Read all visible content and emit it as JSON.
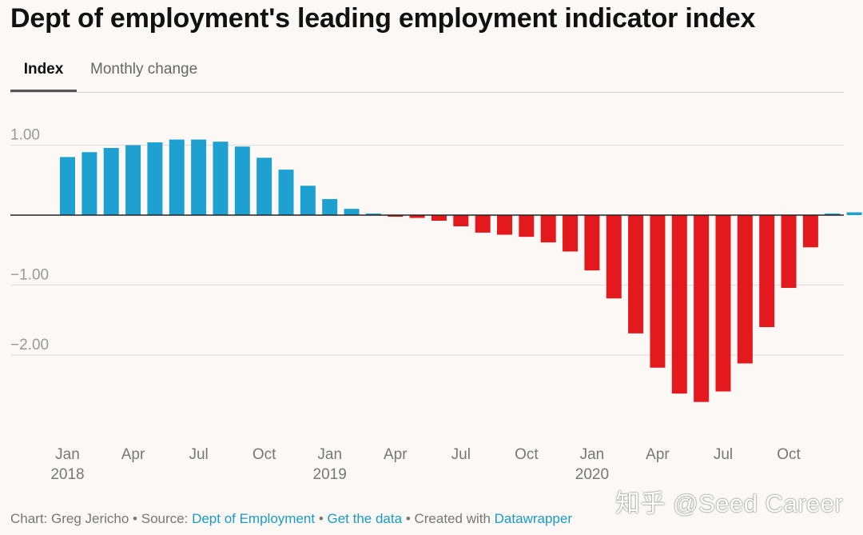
{
  "title": "Dept of employment's leading employment indicator index",
  "tabs": [
    {
      "label": "Index",
      "active": true
    },
    {
      "label": "Monthly change",
      "active": false
    }
  ],
  "footer": {
    "prefix": "Chart: Greg Jericho • Source:",
    "source_link": "Dept of Employment",
    "sep1": "•",
    "data_link": "Get the data",
    "created": "• Created with",
    "tool_link": "Datawrapper"
  },
  "watermark": "知乎 @Seed Career",
  "colors": {
    "positive": "#1ea1d0",
    "negative": "#e3191d",
    "link": "#1a9bc4",
    "grid": "#dddddd",
    "tick_text": "#999999",
    "axis_label_text": "#777777"
  },
  "chart_data": {
    "type": "bar",
    "x_label_months": [
      "Jan",
      "Apr",
      "Jul",
      "Oct",
      "Jan",
      "Apr",
      "Jul",
      "Oct",
      "Jan",
      "Apr",
      "Jul",
      "Oct"
    ],
    "x_label_years": [
      "2018",
      "",
      "",
      "",
      "2019",
      "",
      "",
      "",
      "2020",
      "",
      "",
      ""
    ],
    "categories": [
      "2018-01",
      "2018-02",
      "2018-03",
      "2018-04",
      "2018-05",
      "2018-06",
      "2018-07",
      "2018-08",
      "2018-09",
      "2018-10",
      "2018-11",
      "2018-12",
      "2019-01",
      "2019-02",
      "2019-03",
      "2019-04",
      "2019-05",
      "2019-06",
      "2019-07",
      "2019-08",
      "2019-09",
      "2019-10",
      "2019-11",
      "2019-12",
      "2020-01",
      "2020-02",
      "2020-03",
      "2020-04",
      "2020-05",
      "2020-06",
      "2020-07",
      "2020-08",
      "2020-09",
      "2020-10",
      "2020-11",
      "2020-12",
      "2021-01"
    ],
    "values": [
      0.83,
      0.9,
      0.96,
      1.0,
      1.04,
      1.08,
      1.08,
      1.05,
      0.98,
      0.82,
      0.65,
      0.42,
      0.23,
      0.09,
      0.0,
      -0.02,
      -0.04,
      -0.08,
      -0.16,
      -0.25,
      -0.28,
      -0.31,
      -0.39,
      -0.52,
      -0.79,
      -1.19,
      -1.69,
      -2.18,
      -2.55,
      -2.67,
      -2.52,
      -2.12,
      -1.6,
      -1.04,
      -0.46,
      0.02,
      0.04
    ],
    "yticks": [
      1.0,
      -1.0,
      -2.0
    ],
    "ytick_labels": [
      "1.00",
      "−1.00",
      "−2.00"
    ],
    "ylim": [
      -2.95,
      1.2
    ],
    "grid": true,
    "xlabel": "",
    "ylabel": ""
  }
}
